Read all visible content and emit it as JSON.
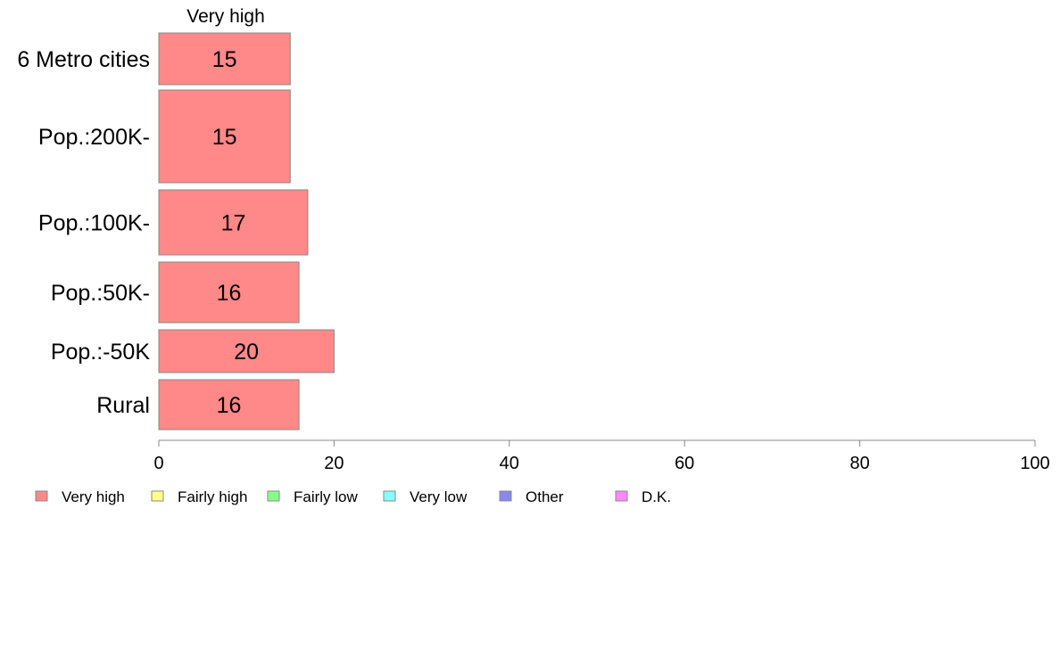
{
  "chart_data": {
    "type": "bar",
    "orientation": "horizontal",
    "stacked": true,
    "column_header": "Very high",
    "categories": [
      "6 Metro cities",
      "Pop.:200K-",
      "Pop.:100K-",
      "Pop.:50K-",
      "Pop.:-50K",
      "Rural"
    ],
    "series": [
      {
        "name": "Very high",
        "values": [
          15,
          15,
          17,
          16,
          20,
          16
        ],
        "color": "#ff8888"
      }
    ],
    "legend": [
      {
        "name": "Very high",
        "color": "#ff8888"
      },
      {
        "name": "Fairly high",
        "color": "#ffff88"
      },
      {
        "name": "Fairly low",
        "color": "#88ff88"
      },
      {
        "name": "Very low",
        "color": "#88ffff"
      },
      {
        "name": "Other",
        "color": "#8888ee"
      },
      {
        "name": "D.K.",
        "color": "#ff88ff"
      }
    ],
    "xlim": [
      0,
      100
    ],
    "xticks": [
      0,
      20,
      40,
      60,
      80,
      100
    ],
    "legend_position": "bottom",
    "grid": false,
    "title": "",
    "xlabel": "",
    "ylabel": ""
  }
}
